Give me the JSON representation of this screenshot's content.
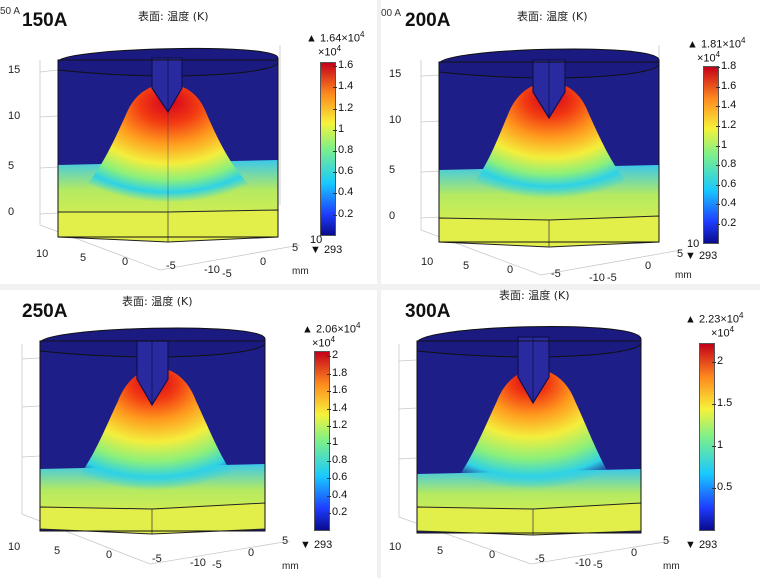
{
  "plot_title": "表面: 温度 (K)",
  "axis_unit": "mm",
  "cut_header_fragments": [
    "50 A",
    "00 A"
  ],
  "panels": [
    {
      "label": "150A",
      "max_label": "▲ 1.64×10",
      "max_exponent": "4",
      "scale_factor": "×10",
      "scale_exponent": "4",
      "min_label": "▼ 293",
      "colorbar_ticks": [
        "1.6",
        "1.4",
        "1.2",
        "1",
        "0.8",
        "0.6",
        "0.4",
        "0.2"
      ],
      "z_ticks": [
        "15",
        "10",
        "5",
        "0"
      ],
      "x_ticks": [
        "10",
        "5",
        "0",
        "-5",
        "-10"
      ],
      "y_ticks": [
        "5",
        "0",
        "-5"
      ],
      "edge_tick": "10"
    },
    {
      "label": "200A",
      "max_label": "▲ 1.81×10",
      "max_exponent": "4",
      "scale_factor": "×10",
      "scale_exponent": "4",
      "min_label": "▼ 293",
      "colorbar_ticks": [
        "1.8",
        "1.6",
        "1.4",
        "1.2",
        "1",
        "0.8",
        "0.6",
        "0.4",
        "0.2"
      ],
      "z_ticks": [
        "15",
        "10",
        "5",
        "0"
      ],
      "x_ticks": [
        "10",
        "5",
        "0",
        "-5",
        "-10"
      ],
      "y_ticks": [
        "5",
        "0",
        "-5"
      ],
      "edge_tick": "10"
    },
    {
      "label": "250A",
      "max_label": "▲ 2.06×10",
      "max_exponent": "4",
      "scale_factor": "×10",
      "scale_exponent": "4",
      "min_label": "▼ 293",
      "colorbar_ticks": [
        "2",
        "1.8",
        "1.6",
        "1.4",
        "1.2",
        "1",
        "0.8",
        "0.6",
        "0.4",
        "0.2"
      ],
      "z_ticks": [],
      "x_ticks": [
        "10",
        "5",
        "0",
        "-5",
        "-10"
      ],
      "y_ticks": [
        "5",
        "0",
        "-5"
      ],
      "edge_tick": "10"
    },
    {
      "label": "300A",
      "max_label": "▲ 2.23×10",
      "max_exponent": "4",
      "scale_factor": "×10",
      "scale_exponent": "4",
      "min_label": "▼ 293",
      "colorbar_ticks": [
        "2",
        "1.5",
        "1",
        "0.5"
      ],
      "z_ticks": [],
      "x_ticks": [
        "10",
        "5",
        "0",
        "-5",
        "-10"
      ],
      "y_ticks": [
        "5",
        "0",
        "-5"
      ],
      "edge_tick": "10"
    }
  ]
}
